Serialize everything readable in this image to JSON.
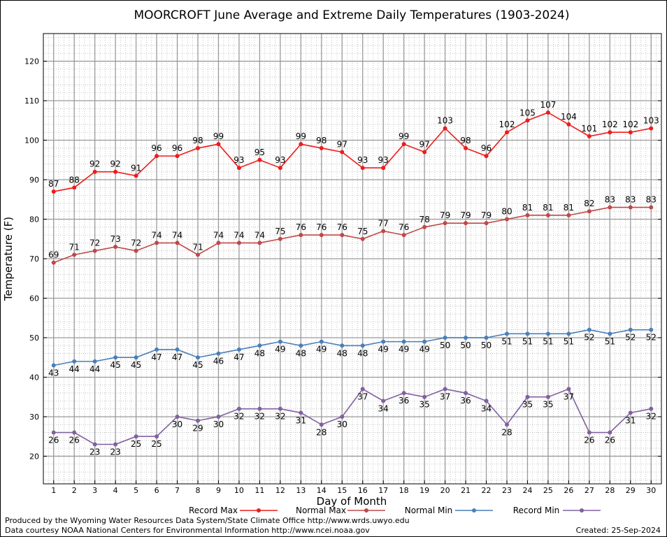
{
  "chart_data": {
    "type": "line",
    "title": "MOORCROFT June Average and Extreme Daily Temperatures (1903-2024)",
    "xlabel": "Day of Month",
    "ylabel": "Temperature (F)",
    "x": [
      1,
      2,
      3,
      4,
      5,
      6,
      7,
      8,
      9,
      10,
      11,
      12,
      13,
      14,
      15,
      16,
      17,
      18,
      19,
      20,
      21,
      22,
      23,
      24,
      25,
      26,
      27,
      28,
      29,
      30
    ],
    "xlim": [
      0.5,
      30.5
    ],
    "ylim": [
      13,
      127
    ],
    "yticks": [
      20,
      30,
      40,
      50,
      60,
      70,
      80,
      90,
      100,
      110,
      120
    ],
    "grid": true,
    "legend_position": "bottom",
    "series": [
      {
        "name": "Record Max",
        "color": "#ee1c1c",
        "values": [
          87,
          88,
          92,
          92,
          91,
          96,
          96,
          98,
          99,
          93,
          95,
          93,
          99,
          98,
          97,
          93,
          93,
          99,
          97,
          103,
          98,
          96,
          102,
          105,
          107,
          104,
          101,
          102,
          102,
          103
        ]
      },
      {
        "name": "Normal Max",
        "color": "#c04848",
        "values": [
          69,
          71,
          72,
          73,
          72,
          74,
          74,
          71,
          74,
          74,
          74,
          75,
          76,
          76,
          76,
          75,
          77,
          76,
          78,
          79,
          79,
          79,
          80,
          81,
          81,
          81,
          82,
          83,
          83,
          83
        ]
      },
      {
        "name": "Normal Min",
        "color": "#4a7fb8",
        "values": [
          43,
          44,
          44,
          45,
          45,
          47,
          47,
          45,
          46,
          47,
          48,
          49,
          48,
          49,
          48,
          48,
          49,
          49,
          49,
          50,
          50,
          50,
          51,
          51,
          51,
          51,
          52,
          51,
          52,
          52
        ]
      },
      {
        "name": "Record Min",
        "color": "#8060a0",
        "values": [
          26,
          26,
          23,
          23,
          25,
          25,
          30,
          29,
          30,
          32,
          32,
          32,
          31,
          28,
          30,
          37,
          34,
          36,
          35,
          37,
          36,
          34,
          28,
          35,
          35,
          37,
          26,
          26,
          31,
          32
        ]
      }
    ]
  },
  "footer": {
    "produced_by": "Produced by the Wyoming Water Resources Data System/State Climate Office http://www.wrds.uwyo.edu",
    "courtesy": "Data courtesy NOAA National Centers for Environmental Information http://www.ncei.noaa.gov",
    "created": "Created:  25-Sep-2024"
  }
}
